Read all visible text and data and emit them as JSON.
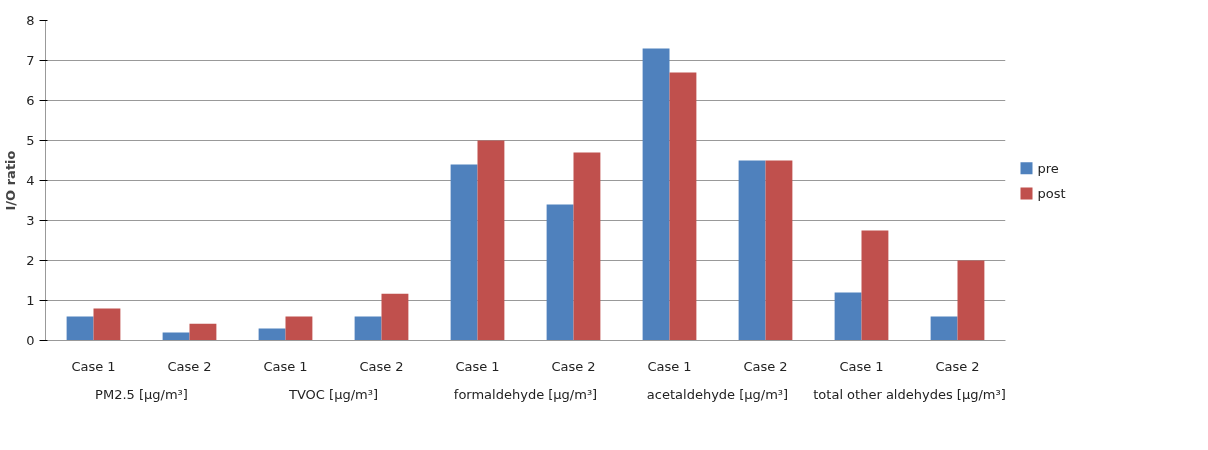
{
  "chart_data": {
    "type": "bar",
    "ylabel": "I/O ratio",
    "categories": [
      "Case 1",
      "Case 2",
      "Case 1",
      "Case 2",
      "Case 1",
      "Case 2",
      "Case 1",
      "Case 2",
      "Case 1",
      "Case 2"
    ],
    "annotations": [
      "PM2.5 [µg/m³]",
      "TVOC [µg/m³]",
      "formaldehyde [µg/m³]",
      "acetaldehyde [µg/m³]",
      "total other aldehydes [µg/m³]"
    ],
    "series": [
      {
        "name": "pre",
        "color": "#4f81bd",
        "values": [
          0.6,
          0.2,
          0.3,
          0.6,
          4.4,
          3.4,
          7.3,
          4.5,
          1.2,
          0.6
        ]
      },
      {
        "name": "post",
        "color": "#c0504d",
        "values": [
          0.8,
          0.42,
          0.6,
          1.17,
          5.0,
          4.7,
          6.7,
          4.5,
          2.75,
          2.0
        ]
      }
    ],
    "ylim": [
      0,
      8
    ],
    "yticks": [
      0,
      1,
      2,
      3,
      4,
      5,
      6,
      7,
      8
    ],
    "grid": "y",
    "legend": "right"
  }
}
